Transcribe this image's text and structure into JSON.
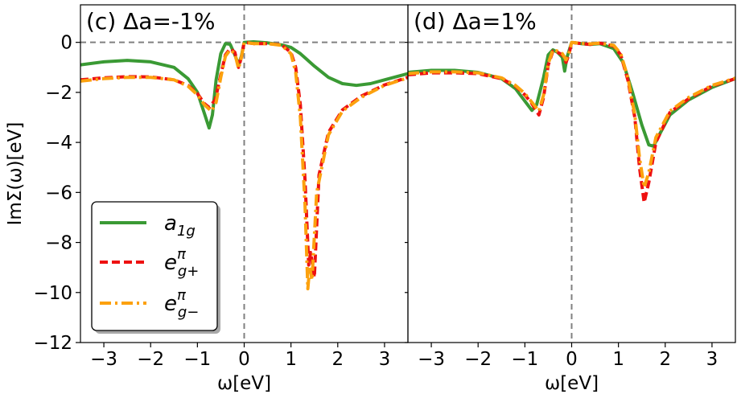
{
  "chart_data": [
    {
      "type": "line",
      "title": "(c) Δa=-1%",
      "xlabel": "ω[eV]",
      "ylabel": "ImΣ(ω)[eV]",
      "xlim": [
        -3.5,
        3.5
      ],
      "ylim": [
        -12,
        1.5
      ],
      "xticks": [
        -3,
        -2,
        -1,
        0,
        1,
        2,
        3
      ],
      "yticks": [
        0,
        -2,
        -4,
        -6,
        -8,
        -10,
        -12
      ],
      "xtick_labels": [
        "−3",
        "−2",
        "−1",
        "0",
        "1",
        "2",
        "3"
      ],
      "ytick_labels": [
        "0",
        "−2",
        "−4",
        "−6",
        "−8",
        "−10",
        "−12"
      ],
      "reference_lines": {
        "x": 0,
        "y": 0,
        "style": "dashed",
        "color": "#808080"
      },
      "legend": {
        "position": "lower-left",
        "entries": [
          "a_1g",
          "e_g+^π",
          "e_g−^π"
        ]
      },
      "series": [
        {
          "name": "a_1g",
          "color": "#3a9a34",
          "dash": "solid",
          "points": [
            [
              -3.5,
              -0.9
            ],
            [
              -3,
              -0.78
            ],
            [
              -2.5,
              -0.72
            ],
            [
              -2,
              -0.78
            ],
            [
              -1.5,
              -1.0
            ],
            [
              -1.2,
              -1.45
            ],
            [
              -1.0,
              -2.0
            ],
            [
              -0.85,
              -2.85
            ],
            [
              -0.75,
              -3.42
            ],
            [
              -0.68,
              -2.9
            ],
            [
              -0.6,
              -1.5
            ],
            [
              -0.5,
              -0.45
            ],
            [
              -0.4,
              -0.05
            ],
            [
              -0.3,
              -0.08
            ],
            [
              -0.2,
              -0.5
            ],
            [
              -0.12,
              -0.9
            ],
            [
              -0.06,
              -0.55
            ],
            [
              0,
              0.0
            ],
            [
              0.2,
              0.02
            ],
            [
              0.5,
              -0.02
            ],
            [
              0.8,
              -0.1
            ],
            [
              1.0,
              -0.2
            ],
            [
              1.2,
              -0.45
            ],
            [
              1.5,
              -0.95
            ],
            [
              1.8,
              -1.4
            ],
            [
              2.1,
              -1.65
            ],
            [
              2.4,
              -1.72
            ],
            [
              2.7,
              -1.65
            ],
            [
              3.0,
              -1.5
            ],
            [
              3.5,
              -1.25
            ]
          ]
        },
        {
          "name": "e_g+^π",
          "color": "#ee1111",
          "dash": "dashed",
          "points": [
            [
              -3.5,
              -1.5
            ],
            [
              -3,
              -1.42
            ],
            [
              -2.5,
              -1.37
            ],
            [
              -2,
              -1.38
            ],
            [
              -1.5,
              -1.5
            ],
            [
              -1.2,
              -1.72
            ],
            [
              -1.0,
              -2.05
            ],
            [
              -0.85,
              -2.45
            ],
            [
              -0.75,
              -2.6
            ],
            [
              -0.62,
              -2.3
            ],
            [
              -0.5,
              -1.3
            ],
            [
              -0.4,
              -0.5
            ],
            [
              -0.3,
              -0.25
            ],
            [
              -0.2,
              -0.4
            ],
            [
              -0.12,
              -1.0
            ],
            [
              -0.06,
              -0.6
            ],
            [
              0,
              0.0
            ],
            [
              0.2,
              -0.05
            ],
            [
              0.5,
              -0.05
            ],
            [
              0.8,
              -0.1
            ],
            [
              1.0,
              -0.4
            ],
            [
              1.1,
              -1.0
            ],
            [
              1.2,
              -2.5
            ],
            [
              1.3,
              -5.5
            ],
            [
              1.38,
              -8.9
            ],
            [
              1.42,
              -8.4
            ],
            [
              1.5,
              -9.4
            ],
            [
              1.6,
              -5.3
            ],
            [
              1.8,
              -3.6
            ],
            [
              2.1,
              -2.7
            ],
            [
              2.5,
              -2.15
            ],
            [
              3.0,
              -1.7
            ],
            [
              3.5,
              -1.4
            ]
          ]
        },
        {
          "name": "e_g−^π",
          "color": "#fca10e",
          "dash": "dashdot",
          "points": [
            [
              -3.5,
              -1.55
            ],
            [
              -3,
              -1.45
            ],
            [
              -2.5,
              -1.4
            ],
            [
              -2,
              -1.4
            ],
            [
              -1.5,
              -1.5
            ],
            [
              -1.2,
              -1.75
            ],
            [
              -1.0,
              -2.1
            ],
            [
              -0.85,
              -2.5
            ],
            [
              -0.7,
              -2.75
            ],
            [
              -0.6,
              -2.4
            ],
            [
              -0.5,
              -1.4
            ],
            [
              -0.4,
              -0.55
            ],
            [
              -0.3,
              -0.3
            ],
            [
              -0.2,
              -0.45
            ],
            [
              -0.12,
              -1.05
            ],
            [
              -0.06,
              -0.6
            ],
            [
              0,
              0.0
            ],
            [
              0.2,
              -0.05
            ],
            [
              0.5,
              -0.05
            ],
            [
              0.8,
              -0.12
            ],
            [
              1.0,
              -0.45
            ],
            [
              1.1,
              -1.2
            ],
            [
              1.2,
              -3.0
            ],
            [
              1.3,
              -6.5
            ],
            [
              1.36,
              -9.85
            ],
            [
              1.4,
              -9.0
            ],
            [
              1.45,
              -9.5
            ],
            [
              1.55,
              -6.0
            ],
            [
              1.8,
              -3.7
            ],
            [
              2.1,
              -2.75
            ],
            [
              2.5,
              -2.2
            ],
            [
              3.0,
              -1.72
            ],
            [
              3.5,
              -1.42
            ]
          ]
        }
      ]
    },
    {
      "type": "line",
      "title": "(d) Δa=1%",
      "xlabel": "ω[eV]",
      "xlim": [
        -3.5,
        3.5
      ],
      "ylim": [
        -12,
        1.5
      ],
      "xticks": [
        -3,
        -2,
        -1,
        0,
        1,
        2,
        3
      ],
      "xtick_labels": [
        "−3",
        "−2",
        "−1",
        "0",
        "1",
        "2",
        "3"
      ],
      "reference_lines": {
        "x": 0,
        "y": 0,
        "style": "dashed",
        "color": "#808080"
      },
      "series": [
        {
          "name": "a_1g",
          "color": "#3a9a34",
          "dash": "solid",
          "points": [
            [
              -3.5,
              -1.2
            ],
            [
              -3,
              -1.12
            ],
            [
              -2.5,
              -1.12
            ],
            [
              -2,
              -1.2
            ],
            [
              -1.5,
              -1.45
            ],
            [
              -1.2,
              -1.85
            ],
            [
              -1.0,
              -2.35
            ],
            [
              -0.85,
              -2.72
            ],
            [
              -0.75,
              -2.5
            ],
            [
              -0.6,
              -1.4
            ],
            [
              -0.5,
              -0.5
            ],
            [
              -0.4,
              -0.3
            ],
            [
              -0.3,
              -0.4
            ],
            [
              -0.2,
              -0.6
            ],
            [
              -0.15,
              -1.15
            ],
            [
              -0.1,
              -0.6
            ],
            [
              0,
              0.0
            ],
            [
              0.2,
              -0.05
            ],
            [
              0.4,
              -0.08
            ],
            [
              0.6,
              -0.05
            ],
            [
              0.9,
              -0.25
            ],
            [
              1.1,
              -0.8
            ],
            [
              1.3,
              -2.0
            ],
            [
              1.5,
              -3.3
            ],
            [
              1.65,
              -4.1
            ],
            [
              1.75,
              -4.15
            ],
            [
              1.9,
              -3.6
            ],
            [
              2.1,
              -2.9
            ],
            [
              2.5,
              -2.3
            ],
            [
              3.0,
              -1.8
            ],
            [
              3.5,
              -1.45
            ]
          ]
        },
        {
          "name": "e_g+^π",
          "color": "#ee1111",
          "dash": "dashed",
          "points": [
            [
              -3.5,
              -1.3
            ],
            [
              -3,
              -1.22
            ],
            [
              -2.5,
              -1.22
            ],
            [
              -2,
              -1.25
            ],
            [
              -1.5,
              -1.45
            ],
            [
              -1.2,
              -1.75
            ],
            [
              -1.0,
              -2.1
            ],
            [
              -0.85,
              -2.45
            ],
            [
              -0.7,
              -2.9
            ],
            [
              -0.6,
              -2.2
            ],
            [
              -0.5,
              -0.9
            ],
            [
              -0.4,
              -0.35
            ],
            [
              -0.3,
              -0.4
            ],
            [
              -0.2,
              -0.5
            ],
            [
              -0.12,
              -0.8
            ],
            [
              -0.06,
              -0.5
            ],
            [
              0,
              0.0
            ],
            [
              0.2,
              -0.05
            ],
            [
              0.4,
              -0.08
            ],
            [
              0.6,
              -0.03
            ],
            [
              0.9,
              -0.15
            ],
            [
              1.05,
              -0.5
            ],
            [
              1.2,
              -1.5
            ],
            [
              1.35,
              -3.0
            ],
            [
              1.45,
              -5.0
            ],
            [
              1.55,
              -6.4
            ],
            [
              1.65,
              -5.6
            ],
            [
              1.8,
              -4.0
            ],
            [
              2.1,
              -2.8
            ],
            [
              2.5,
              -2.25
            ],
            [
              3.0,
              -1.75
            ],
            [
              3.5,
              -1.45
            ]
          ]
        },
        {
          "name": "e_g−^π",
          "color": "#fca10e",
          "dash": "dashdot",
          "points": [
            [
              -3.5,
              -1.25
            ],
            [
              -3,
              -1.18
            ],
            [
              -2.5,
              -1.18
            ],
            [
              -2,
              -1.22
            ],
            [
              -1.5,
              -1.42
            ],
            [
              -1.2,
              -1.72
            ],
            [
              -1.0,
              -2.05
            ],
            [
              -0.85,
              -2.4
            ],
            [
              -0.7,
              -2.75
            ],
            [
              -0.6,
              -2.1
            ],
            [
              -0.5,
              -0.85
            ],
            [
              -0.4,
              -0.3
            ],
            [
              -0.3,
              -0.35
            ],
            [
              -0.2,
              -0.45
            ],
            [
              -0.12,
              -0.7
            ],
            [
              -0.06,
              -0.45
            ],
            [
              0,
              0.0
            ],
            [
              0.2,
              -0.04
            ],
            [
              0.4,
              -0.06
            ],
            [
              0.6,
              -0.03
            ],
            [
              0.9,
              -0.12
            ],
            [
              1.05,
              -0.45
            ],
            [
              1.2,
              -1.4
            ],
            [
              1.35,
              -2.9
            ],
            [
              1.45,
              -4.6
            ],
            [
              1.55,
              -5.8
            ],
            [
              1.65,
              -5.2
            ],
            [
              1.8,
              -3.8
            ],
            [
              2.1,
              -2.75
            ],
            [
              2.5,
              -2.2
            ],
            [
              3.0,
              -1.72
            ],
            [
              3.5,
              -1.43
            ]
          ]
        }
      ]
    }
  ]
}
